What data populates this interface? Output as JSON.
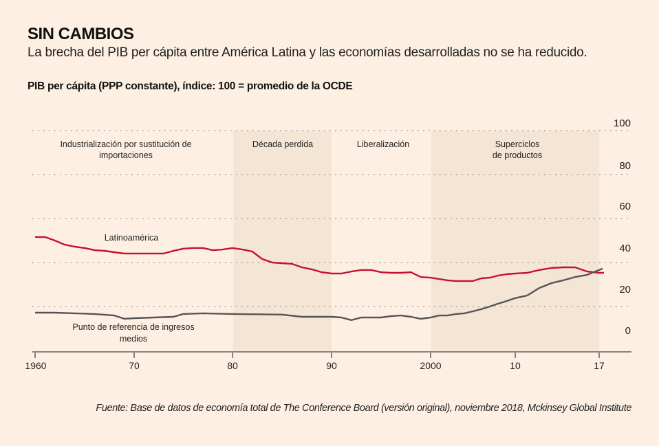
{
  "header": {
    "title": "SIN CAMBIOS",
    "subtitle": "La brecha del PIB per cápita entre América Latina y las economías desarrolladas no se ha reducido.",
    "unit_label": "PIB per cápita (PPP constante), índice: 100 = promedio de la OCDE"
  },
  "footer": {
    "source": "Fuente: Base de datos de economía total de The Conference Board (versión original), noviembre 2018, Mckinsey Global Institute"
  },
  "chart_data": {
    "type": "line",
    "title": "SIN CAMBIOS",
    "subtitle": "La brecha del PIB per cápita entre América Latina y las economías desarrolladas no se ha reducido.",
    "ylabel": "PIB per cápita (PPP constante), índice: 100 = promedio de la OCDE",
    "xlabel": "",
    "xlim": [
      1960,
      2017
    ],
    "ylim": [
      0,
      100
    ],
    "grid": true,
    "y_axis_side": "right",
    "x_ticks": [
      {
        "value": 1960,
        "label": "1960"
      },
      {
        "value": 1970,
        "label": "70"
      },
      {
        "value": 1980,
        "label": "80"
      },
      {
        "value": 1990,
        "label": "90"
      },
      {
        "value": 2000,
        "label": "2000"
      },
      {
        "value": 2010,
        "label": "10"
      },
      {
        "value": 2017,
        "label": "17"
      }
    ],
    "y_ticks": [
      100,
      80,
      60,
      40,
      20,
      0
    ],
    "y_tick_labels": [
      "100",
      "80",
      "60",
      "40",
      "20",
      "0"
    ],
    "periods": [
      {
        "label": [
          "Industrialización por sustitución de",
          "importaciones"
        ],
        "start": 1960,
        "end": 1980,
        "shaded": false
      },
      {
        "label": [
          "Década perdida"
        ],
        "start": 1980,
        "end": 1990,
        "shaded": true
      },
      {
        "label": [
          "Liberalización"
        ],
        "start": 1990,
        "end": 2000,
        "shaded": false
      },
      {
        "label": [
          "Superciclos",
          "de productos"
        ],
        "start": 2000,
        "end": 2017,
        "shaded": true
      }
    ],
    "series": [
      {
        "name": "Latinoamérica",
        "label_lines": [
          "Latinoamérica"
        ],
        "color": "#c8102e",
        "x": [
          1960,
          1961,
          1962,
          1963,
          1964,
          1965,
          1966,
          1967,
          1968,
          1969,
          1970,
          1971,
          1972,
          1973,
          1974,
          1975,
          1976,
          1977,
          1978,
          1979,
          1980,
          1981,
          1982,
          1983,
          1984,
          1985,
          1986,
          1987,
          1988,
          1989,
          1990,
          1991,
          1992,
          1993,
          1994,
          1995,
          1996,
          1997,
          1998,
          1999,
          2000,
          2001,
          2002,
          2003,
          2004,
          2005,
          2006,
          2007,
          2008,
          2009,
          2010,
          2011,
          2012,
          2013,
          2014,
          2015,
          2016,
          2017
        ],
        "values": [
          51.6,
          51.6,
          50.0,
          48.1,
          47.2,
          46.6,
          45.6,
          45.3,
          44.7,
          44.1,
          44.1,
          44.1,
          44.1,
          44.1,
          45.3,
          46.3,
          46.6,
          46.6,
          45.6,
          45.9,
          46.6,
          45.9,
          45.0,
          41.6,
          40.0,
          39.7,
          39.4,
          37.8,
          36.9,
          35.6,
          35.0,
          35.0,
          35.9,
          36.6,
          36.6,
          35.6,
          35.3,
          35.3,
          35.6,
          33.4,
          33.1,
          32.5,
          31.9,
          31.6,
          31.6,
          31.6,
          32.8,
          33.1,
          34.1,
          34.7,
          35.0,
          35.3,
          36.6,
          37.5,
          37.8,
          37.8,
          35.9,
          35.3
        ]
      },
      {
        "name": "Punto de referencia de ingresos medios",
        "label_lines": [
          "Punto de referencia de ingresos",
          "medios"
        ],
        "color": "#555555",
        "x": [
          1960,
          1962,
          1964,
          1966,
          1968,
          1969,
          1970,
          1972,
          1974,
          1975,
          1977,
          1980,
          1985,
          1987,
          1990,
          1991,
          1992,
          1993,
          1995,
          1996,
          1997,
          1998,
          1999,
          2000,
          2001,
          2002,
          2003,
          2004,
          2005,
          2006,
          2007,
          2008,
          2009,
          2010,
          2011,
          2012,
          2013,
          2014,
          2015,
          2016,
          2017
        ],
        "values": [
          17.2,
          17.2,
          16.9,
          16.6,
          15.9,
          14.4,
          14.7,
          15.0,
          15.3,
          16.6,
          16.9,
          16.6,
          16.3,
          15.3,
          15.3,
          15.0,
          13.8,
          15.0,
          15.0,
          15.6,
          15.9,
          15.3,
          14.4,
          15.0,
          15.9,
          15.9,
          16.6,
          16.9,
          17.8,
          18.8,
          20.0,
          21.3,
          22.5,
          23.8,
          25.0,
          28.4,
          30.6,
          31.9,
          33.4,
          34.4,
          36.6
        ]
      }
    ]
  }
}
